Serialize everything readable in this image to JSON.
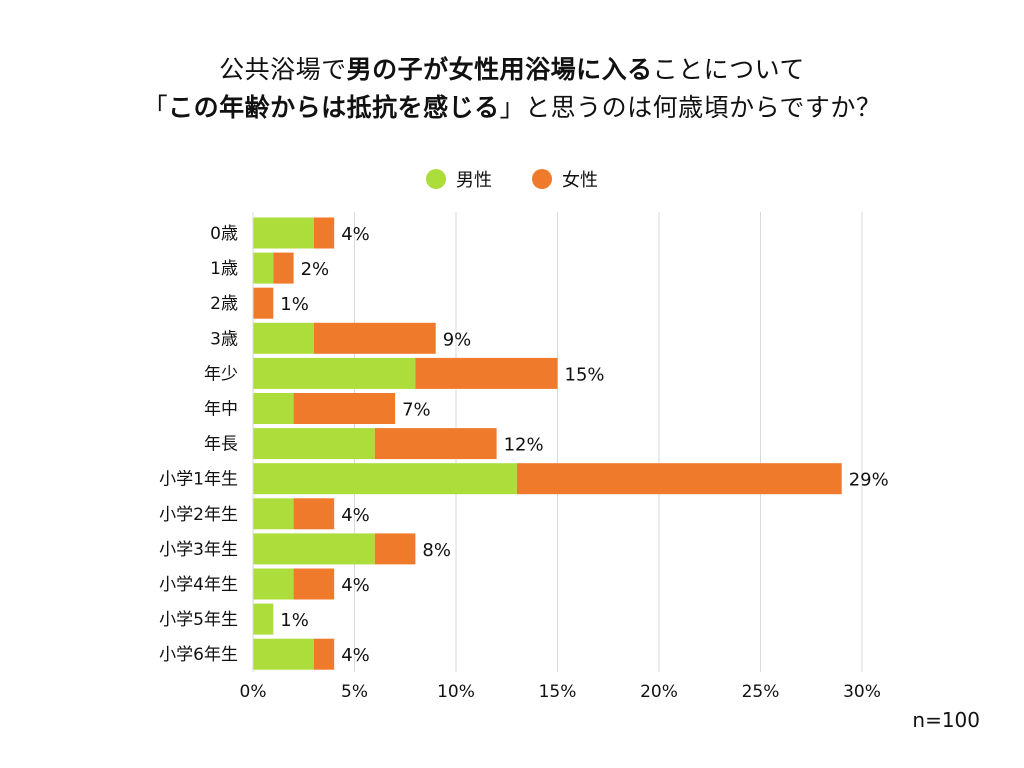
{
  "title": {
    "line1_parts": [
      {
        "text": "公共浴場で",
        "bold": false
      },
      {
        "text": "男の子が女性用浴場に入る",
        "bold": true
      },
      {
        "text": "ことについて",
        "bold": false
      }
    ],
    "line2_parts": [
      {
        "text": "「",
        "bold": false
      },
      {
        "text": "この年齢からは抵抗を感じる",
        "bold": true
      },
      {
        "text": "」と思うのは何歳頃からですか？",
        "bold": false
      }
    ]
  },
  "sample_size": "n=100",
  "colors": {
    "male": "#acdd3a",
    "female": "#f07a2b",
    "grid": "#d9d9d9"
  },
  "chart_data": {
    "type": "bar",
    "orientation": "horizontal",
    "stacked": true,
    "categories": [
      "0歳",
      "1歳",
      "2歳",
      "3歳",
      "年少",
      "年中",
      "年長",
      "小学1年生",
      "小学2年生",
      "小学3年生",
      "小学4年生",
      "小学5年生",
      "小学6年生"
    ],
    "series": [
      {
        "name": "男性",
        "color_key": "male",
        "values": [
          3,
          1,
          0,
          3,
          8,
          2,
          6,
          13,
          2,
          6,
          2,
          1,
          3
        ]
      },
      {
        "name": "女性",
        "color_key": "female",
        "values": [
          1,
          1,
          1,
          6,
          7,
          5,
          6,
          16,
          2,
          2,
          2,
          0,
          1
        ]
      }
    ],
    "totals": [
      4,
      2,
      1,
      9,
      15,
      7,
      12,
      29,
      4,
      8,
      4,
      1,
      4
    ],
    "total_labels": [
      "4%",
      "2%",
      "1%",
      "9%",
      "15%",
      "7%",
      "12%",
      "29%",
      "4%",
      "8%",
      "4%",
      "1%",
      "4%"
    ],
    "xlim": [
      0,
      30
    ],
    "xticks": [
      0,
      5,
      10,
      15,
      20,
      25,
      30
    ],
    "xtick_labels": [
      "0%",
      "5%",
      "10%",
      "15%",
      "20%",
      "25%",
      "30%"
    ],
    "legend": [
      "男性",
      "女性"
    ],
    "legend_position": "top-center",
    "grid": true
  }
}
